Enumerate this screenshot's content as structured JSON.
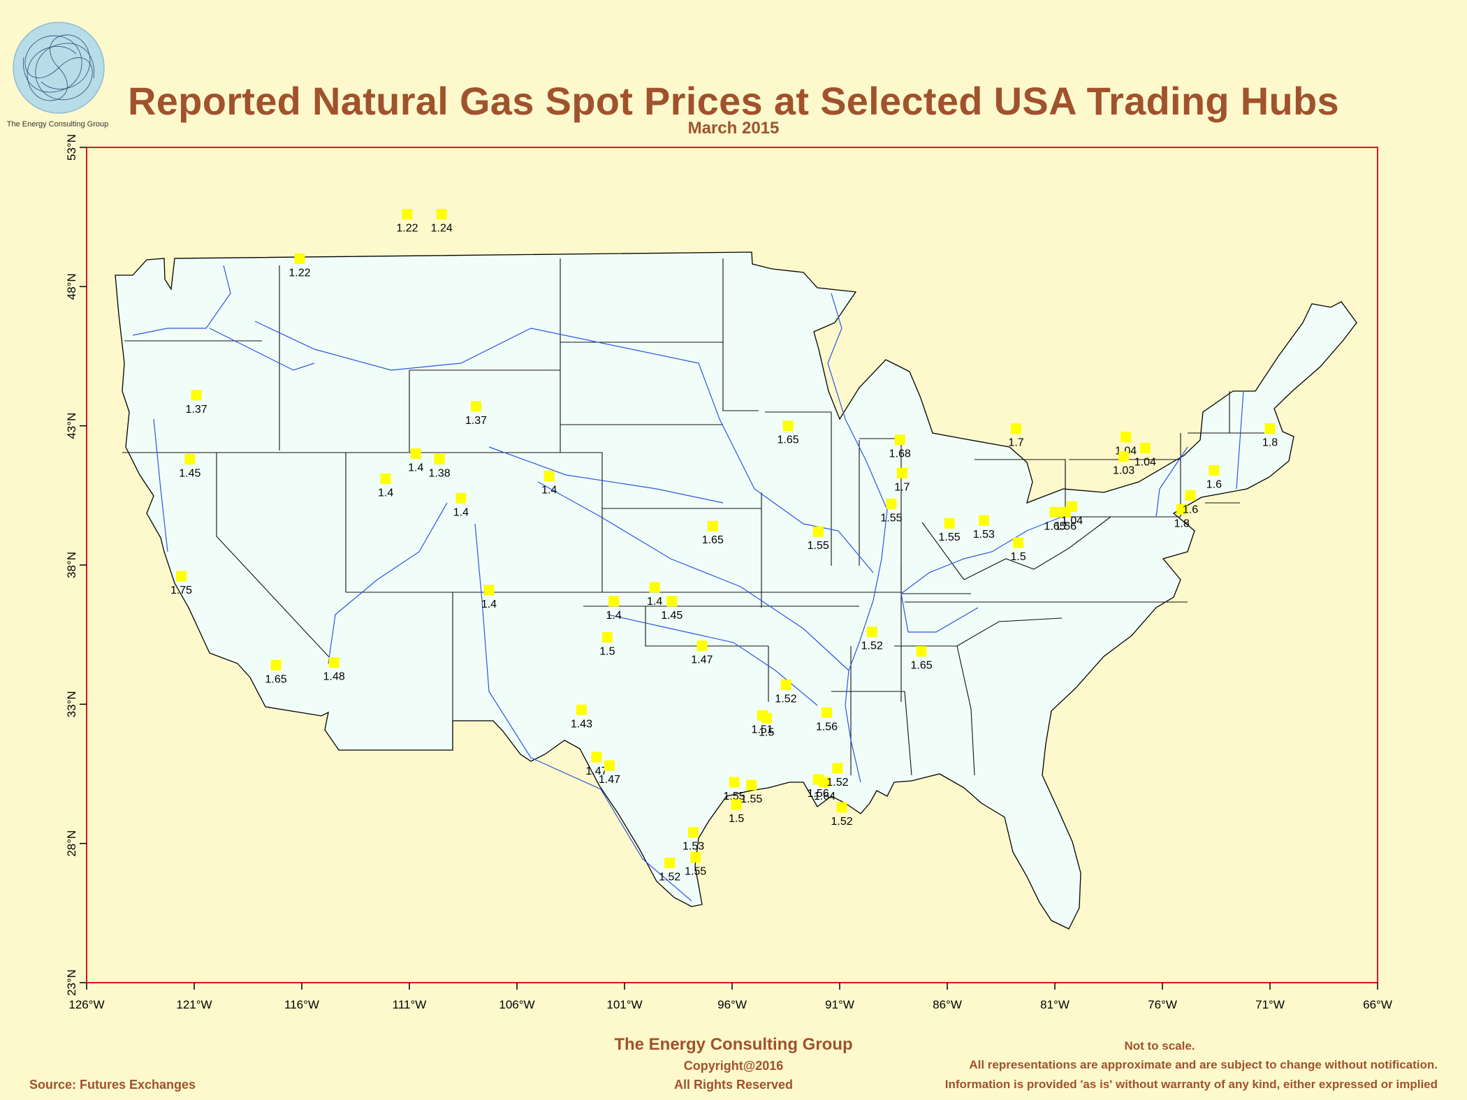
{
  "title": "Reported Natural Gas Spot Prices at Selected USA Trading Hubs",
  "subtitle": "March 2015",
  "logo": {
    "caption": "The Energy Consulting Group",
    "icon": "spiral-logo-icon"
  },
  "axes": {
    "lon_ticks": [
      "126°W",
      "121°W",
      "116°W",
      "111°W",
      "106°W",
      "101°W",
      "96°W",
      "91°W",
      "86°W",
      "81°W",
      "76°W",
      "71°W",
      "66°W"
    ],
    "lat_ticks": [
      "23°N",
      "28°N",
      "33°N",
      "38°N",
      "43°N",
      "48°N",
      "53°N"
    ],
    "lon_range": [
      -126,
      -66
    ],
    "lat_range": [
      23,
      53
    ]
  },
  "colors": {
    "background": "#fdf9cc",
    "frame": "#e0121f",
    "land": "#f1fdf8",
    "marker": "#ffff00",
    "river": "#2a55e0",
    "title": "#a0522d"
  },
  "hubs": [
    {
      "lon": -111.1,
      "lat": 50.6,
      "price": "1.22"
    },
    {
      "lon": -109.5,
      "lat": 50.6,
      "price": "1.24"
    },
    {
      "lon": -116.1,
      "lat": 49.0,
      "price": "1.22"
    },
    {
      "lon": -120.9,
      "lat": 44.1,
      "price": "1.37"
    },
    {
      "lon": -107.9,
      "lat": 43.7,
      "price": "1.37"
    },
    {
      "lon": -121.2,
      "lat": 41.8,
      "price": "1.45"
    },
    {
      "lon": -110.7,
      "lat": 42.0,
      "price": "1.4"
    },
    {
      "lon": -109.6,
      "lat": 41.8,
      "price": "1.38"
    },
    {
      "lon": -112.1,
      "lat": 41.1,
      "price": "1.4"
    },
    {
      "lon": -104.5,
      "lat": 41.2,
      "price": "1.4"
    },
    {
      "lon": -108.6,
      "lat": 40.4,
      "price": "1.4"
    },
    {
      "lon": -121.6,
      "lat": 37.6,
      "price": "1.75"
    },
    {
      "lon": -107.3,
      "lat": 37.1,
      "price": "1.4"
    },
    {
      "lon": -117.2,
      "lat": 34.4,
      "price": "1.65"
    },
    {
      "lon": -114.5,
      "lat": 34.5,
      "price": "1.48"
    },
    {
      "lon": -101.5,
      "lat": 36.7,
      "price": "1.4"
    },
    {
      "lon": -99.6,
      "lat": 37.2,
      "price": "1.4"
    },
    {
      "lon": -98.8,
      "lat": 36.7,
      "price": "1.45"
    },
    {
      "lon": -101.8,
      "lat": 35.4,
      "price": "1.5"
    },
    {
      "lon": -97.4,
      "lat": 35.1,
      "price": "1.47"
    },
    {
      "lon": -103.0,
      "lat": 32.8,
      "price": "1.43"
    },
    {
      "lon": -102.3,
      "lat": 31.1,
      "price": "1.47"
    },
    {
      "lon": -101.7,
      "lat": 30.8,
      "price": "1.47"
    },
    {
      "lon": -97.8,
      "lat": 28.4,
      "price": "1.53"
    },
    {
      "lon": -98.9,
      "lat": 27.3,
      "price": "1.52"
    },
    {
      "lon": -97.7,
      "lat": 27.5,
      "price": "1.55"
    },
    {
      "lon": -95.9,
      "lat": 30.2,
      "price": "1.55"
    },
    {
      "lon": -95.1,
      "lat": 30.1,
      "price": "1.55"
    },
    {
      "lon": -95.8,
      "lat": 29.4,
      "price": "1.5"
    },
    {
      "lon": -94.6,
      "lat": 32.6,
      "price": "1.51"
    },
    {
      "lon": -94.4,
      "lat": 32.5,
      "price": "1.5"
    },
    {
      "lon": -93.5,
      "lat": 33.7,
      "price": "1.52"
    },
    {
      "lon": -91.6,
      "lat": 32.7,
      "price": "1.56"
    },
    {
      "lon": -92.0,
      "lat": 30.3,
      "price": "1.56"
    },
    {
      "lon": -91.7,
      "lat": 30.2,
      "price": "1.64"
    },
    {
      "lon": -91.1,
      "lat": 30.7,
      "price": "1.52"
    },
    {
      "lon": -90.9,
      "lat": 29.3,
      "price": "1.52"
    },
    {
      "lon": -96.9,
      "lat": 39.4,
      "price": "1.65"
    },
    {
      "lon": -93.4,
      "lat": 43.0,
      "price": "1.65"
    },
    {
      "lon": -92.0,
      "lat": 39.2,
      "price": "1.55"
    },
    {
      "lon": -88.2,
      "lat": 42.5,
      "price": "1.68"
    },
    {
      "lon": -88.1,
      "lat": 41.3,
      "price": "1.7"
    },
    {
      "lon": -88.6,
      "lat": 40.2,
      "price": "1.55"
    },
    {
      "lon": -85.9,
      "lat": 39.5,
      "price": "1.55"
    },
    {
      "lon": -84.3,
      "lat": 39.6,
      "price": "1.53"
    },
    {
      "lon": -82.8,
      "lat": 42.9,
      "price": "1.7"
    },
    {
      "lon": -82.7,
      "lat": 38.8,
      "price": "1.5"
    },
    {
      "lon": -89.5,
      "lat": 35.6,
      "price": "1.52"
    },
    {
      "lon": -87.2,
      "lat": 34.9,
      "price": "1.65"
    },
    {
      "lon": -81.0,
      "lat": 39.9,
      "price": "1.65"
    },
    {
      "lon": -80.5,
      "lat": 39.9,
      "price": "1.56"
    },
    {
      "lon": -80.2,
      "lat": 40.1,
      "price": "1.04"
    },
    {
      "lon": -77.7,
      "lat": 42.6,
      "price": "1.04"
    },
    {
      "lon": -77.8,
      "lat": 41.9,
      "price": "1.03"
    },
    {
      "lon": -76.8,
      "lat": 42.2,
      "price": "1.04"
    },
    {
      "lon": -75.1,
      "lat": 40.0,
      "price": "1.8"
    },
    {
      "lon": -74.7,
      "lat": 40.5,
      "price": "1.6"
    },
    {
      "lon": -73.6,
      "lat": 41.4,
      "price": "1.6"
    },
    {
      "lon": -71.0,
      "lat": 42.9,
      "price": "1.8"
    }
  ],
  "footer": {
    "org": "The Energy Consulting Group",
    "copyright": "Copyright@2016",
    "rights": "All Rights Reserved",
    "source": "Source: Futures Exchanges",
    "not_to_scale": "Not to scale.",
    "disclaimer1": "All representations are approximate and are subject to change without notification.",
    "disclaimer2": "Information is provided 'as is' without warranty of any kind, either expressed or implied"
  }
}
